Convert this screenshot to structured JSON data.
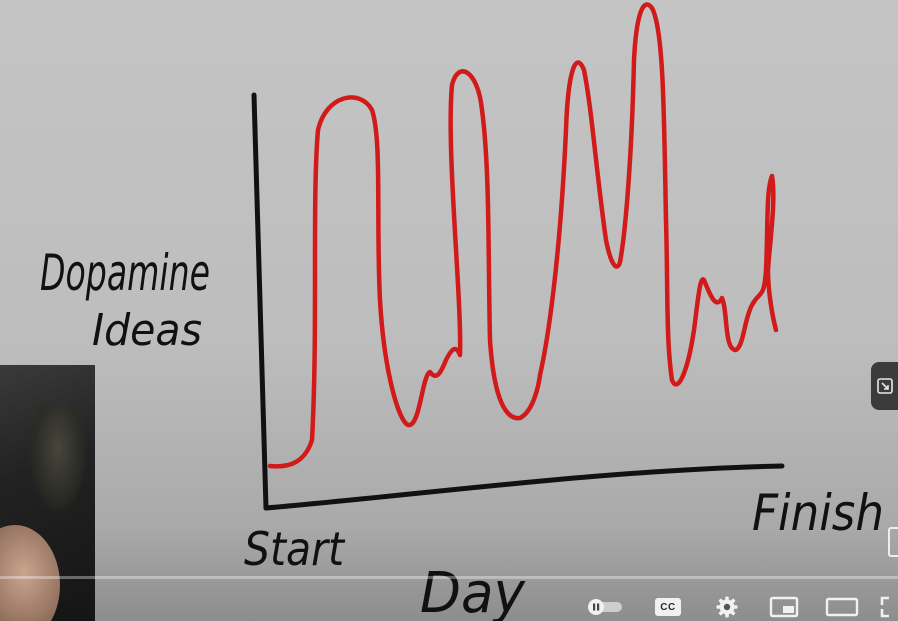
{
  "whiteboard": {
    "y_axis_label_line1": "Dopamine",
    "y_axis_label_line2": "Ideas",
    "x_axis_label": "Day",
    "x_start_label": "Start",
    "x_end_label": "Finish",
    "curve_color": "#d11a1a",
    "axis_color": "#111111"
  },
  "controls": {
    "cc_label": "CC",
    "icons": [
      "autoplay-toggle-icon",
      "subtitles-icon",
      "settings-gear-icon",
      "miniplayer-icon",
      "theater-mode-icon",
      "fullscreen-icon"
    ]
  }
}
